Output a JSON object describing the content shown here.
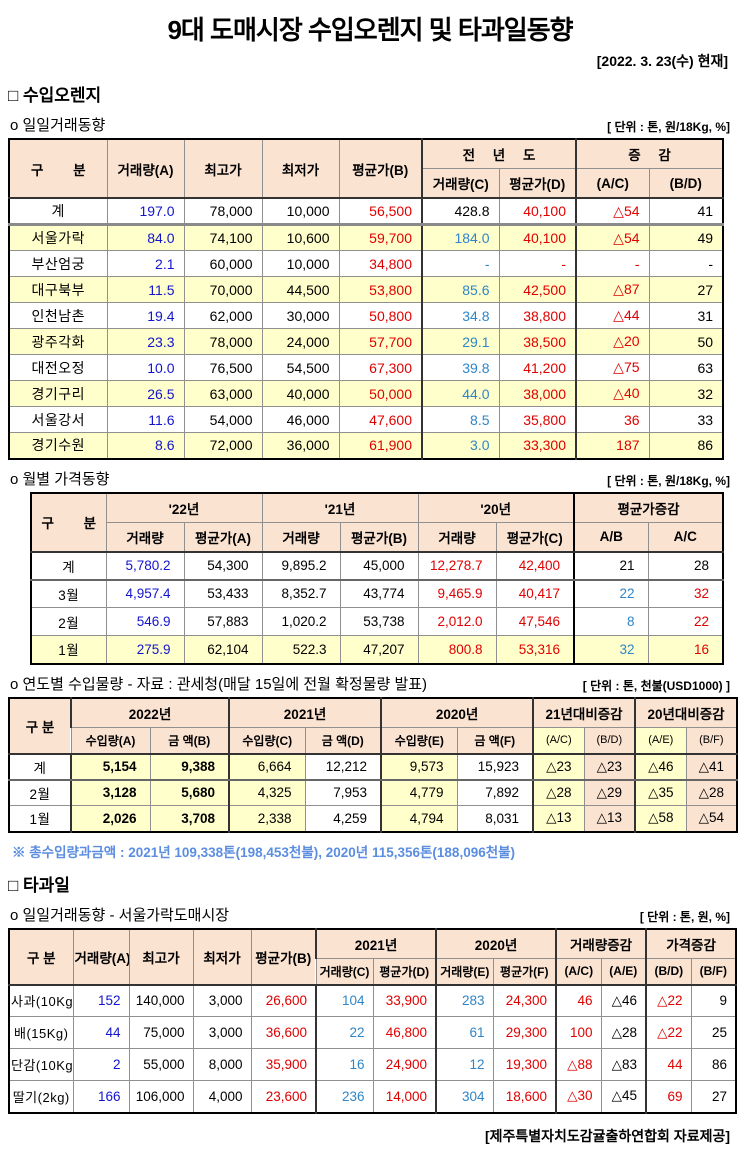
{
  "colors": {
    "header-bg": "#fbe3d2",
    "row-yellow": "#ffffcc",
    "blue": "#1414cf",
    "lightblue": "#2e86c8",
    "red": "#e00000",
    "note-blue": "#5b8de0"
  },
  "page": {
    "title": "9대 도매시장 수입오렌지 및 타과일동향",
    "date": "[2022. 3. 23(수) 현재]",
    "footer": "[제주특별자치도감귤출하연합회 자료제공]"
  },
  "orange": {
    "heading": "□ 수입오렌지",
    "daily": {
      "subheading": "o  일일거래동향",
      "unit": "[ 단위 : 톤, 원/18Kg, %]",
      "headers": {
        "gubun": "구 분",
        "volume_a": "거래량(A)",
        "high": "최고가",
        "low": "최저가",
        "avg_b": "평균가(B)",
        "prev_year": "전 년 도",
        "prev_volume_c": "거래량(C)",
        "prev_avg_d": "평균가(D)",
        "change": "증 감",
        "ac": "(A/C)",
        "bd": "(B/D)"
      },
      "rows": [
        {
          "label": "계",
          "cls": "total",
          "cells": [
            [
              "197.0",
              "blue"
            ],
            [
              "78,000",
              ""
            ],
            [
              "10,000",
              ""
            ],
            [
              "56,500",
              "red"
            ],
            [
              "428.8",
              ""
            ],
            [
              "40,100",
              "red"
            ],
            [
              "△54",
              "red"
            ],
            [
              "41",
              ""
            ]
          ]
        },
        {
          "label": "서울가락",
          "cls": "hl",
          "cells": [
            [
              "84.0",
              "blue"
            ],
            [
              "74,100",
              ""
            ],
            [
              "10,600",
              ""
            ],
            [
              "59,700",
              "red"
            ],
            [
              "184.0",
              "lb"
            ],
            [
              "40,100",
              "red"
            ],
            [
              "△54",
              "red"
            ],
            [
              "49",
              ""
            ]
          ]
        },
        {
          "label": "부산엄궁",
          "cells": [
            [
              "2.1",
              "blue"
            ],
            [
              "60,000",
              ""
            ],
            [
              "10,000",
              ""
            ],
            [
              "34,800",
              "red"
            ],
            [
              "-",
              "lb"
            ],
            [
              "-",
              "red"
            ],
            [
              "-",
              "red"
            ],
            [
              "-",
              ""
            ]
          ]
        },
        {
          "label": "대구북부",
          "cls": "hl",
          "cells": [
            [
              "11.5",
              "blue"
            ],
            [
              "70,000",
              ""
            ],
            [
              "44,500",
              ""
            ],
            [
              "53,800",
              "red"
            ],
            [
              "85.6",
              "lb"
            ],
            [
              "42,500",
              "red"
            ],
            [
              "△87",
              "red"
            ],
            [
              "27",
              ""
            ]
          ]
        },
        {
          "label": "인천남촌",
          "cells": [
            [
              "19.4",
              "blue"
            ],
            [
              "62,000",
              ""
            ],
            [
              "30,000",
              ""
            ],
            [
              "50,800",
              "red"
            ],
            [
              "34.8",
              "lb"
            ],
            [
              "38,800",
              "red"
            ],
            [
              "△44",
              "red"
            ],
            [
              "31",
              ""
            ]
          ]
        },
        {
          "label": "광주각화",
          "cls": "hl",
          "cells": [
            [
              "23.3",
              "blue"
            ],
            [
              "78,000",
              ""
            ],
            [
              "24,000",
              ""
            ],
            [
              "57,700",
              "red"
            ],
            [
              "29.1",
              "lb"
            ],
            [
              "38,500",
              "red"
            ],
            [
              "△20",
              "red"
            ],
            [
              "50",
              ""
            ]
          ]
        },
        {
          "label": "대전오정",
          "cells": [
            [
              "10.0",
              "blue"
            ],
            [
              "76,500",
              ""
            ],
            [
              "54,500",
              ""
            ],
            [
              "67,300",
              "red"
            ],
            [
              "39.8",
              "lb"
            ],
            [
              "41,200",
              "red"
            ],
            [
              "△75",
              "red"
            ],
            [
              "63",
              ""
            ]
          ]
        },
        {
          "label": "경기구리",
          "cls": "hl",
          "cells": [
            [
              "26.5",
              "blue"
            ],
            [
              "63,000",
              ""
            ],
            [
              "40,000",
              ""
            ],
            [
              "50,000",
              "red"
            ],
            [
              "44.0",
              "lb"
            ],
            [
              "38,000",
              "red"
            ],
            [
              "△40",
              "red"
            ],
            [
              "32",
              ""
            ]
          ]
        },
        {
          "label": "서울강서",
          "cells": [
            [
              "11.6",
              "blue"
            ],
            [
              "54,000",
              ""
            ],
            [
              "46,000",
              ""
            ],
            [
              "47,600",
              "red"
            ],
            [
              "8.5",
              "lb"
            ],
            [
              "35,800",
              "red"
            ],
            [
              "36",
              "red"
            ],
            [
              "33",
              ""
            ]
          ]
        },
        {
          "label": "경기수원",
          "cls": "hl",
          "cells": [
            [
              "8.6",
              "blue"
            ],
            [
              "72,000",
              ""
            ],
            [
              "36,000",
              ""
            ],
            [
              "61,900",
              "red"
            ],
            [
              "3.0",
              "lb"
            ],
            [
              "33,300",
              "red"
            ],
            [
              "187",
              "red"
            ],
            [
              "86",
              ""
            ]
          ]
        }
      ]
    },
    "monthly": {
      "subheading": "o  월별 가격동향",
      "unit": "[ 단위 : 톤, 원/18Kg, %]",
      "headers": {
        "gubun": "구 분",
        "y22": "'22년",
        "y21": "'21년",
        "y20": "'20년",
        "chg": "평균가증감",
        "vol": "거래량",
        "avg_a": "평균가(A)",
        "avg_b": "평균가(B)",
        "avg_c": "평균가(C)",
        "ab": "A/B",
        "ac": "A/C"
      },
      "rows": [
        {
          "label": "계",
          "cls": "total",
          "cells": [
            [
              "5,780.2",
              "blue"
            ],
            [
              "54,300",
              ""
            ],
            [
              "9,895.2",
              ""
            ],
            [
              "45,000",
              ""
            ],
            [
              "12,278.7",
              "red"
            ],
            [
              "42,400",
              "red"
            ],
            [
              "21",
              ""
            ],
            [
              "28",
              ""
            ]
          ]
        },
        {
          "label": "3월",
          "cells": [
            [
              "4,957.4",
              "blue"
            ],
            [
              "53,433",
              ""
            ],
            [
              "8,352.7",
              ""
            ],
            [
              "43,774",
              ""
            ],
            [
              "9,465.9",
              "red"
            ],
            [
              "40,417",
              "red"
            ],
            [
              "22",
              "lb"
            ],
            [
              "32",
              "red"
            ]
          ]
        },
        {
          "label": "2월",
          "cells": [
            [
              "546.9",
              "blue"
            ],
            [
              "57,883",
              ""
            ],
            [
              "1,020.2",
              ""
            ],
            [
              "53,738",
              ""
            ],
            [
              "2,012.0",
              "red"
            ],
            [
              "47,546",
              "red"
            ],
            [
              "8",
              "lb"
            ],
            [
              "22",
              "red"
            ]
          ]
        },
        {
          "label": "1월",
          "cls": "hl",
          "cells": [
            [
              "275.9",
              "blue"
            ],
            [
              "62,104",
              ""
            ],
            [
              "522.3",
              ""
            ],
            [
              "47,207",
              ""
            ],
            [
              "800.8",
              "red"
            ],
            [
              "53,316",
              "red"
            ],
            [
              "32",
              "lb"
            ],
            [
              "16",
              "red"
            ]
          ]
        }
      ]
    },
    "yearly": {
      "subheading": "o  연도별 수입물량 - 자료 : 관세청(매달 15일에 전월 확정물량 발표)",
      "unit": "[ 단위 : 톤, 천불(USD1000) ]",
      "note": "※ 총수입량과금액 : 2021년 109,338톤(198,453천불),  2020년 115,356톤(188,096천불)",
      "headers": {
        "gubun": "구 분",
        "y2022": "2022년",
        "y2021": "2021년",
        "y2020": "2020년",
        "vs21": "21년대비증감",
        "vs20": "20년대비증감",
        "in_a": "수입량(A)",
        "amt_b": "금 액(B)",
        "in_c": "수입량(C)",
        "amt_d": "금 액(D)",
        "in_e": "수입량(E)",
        "amt_f": "금 액(F)",
        "ac": "(A/C)",
        "bd": "(B/D)",
        "ae": "(A/E)",
        "bf": "(B/F)"
      },
      "rows": [
        {
          "label": "계",
          "cls": "total",
          "cells": [
            [
              "5,154",
              ""
            ],
            [
              "9,388",
              ""
            ],
            [
              "6,664",
              ""
            ],
            [
              "12,212",
              ""
            ],
            [
              "9,573",
              ""
            ],
            [
              "15,923",
              ""
            ],
            [
              "△23",
              ""
            ],
            [
              "△23",
              ""
            ],
            [
              "△46",
              ""
            ],
            [
              "△41",
              ""
            ]
          ]
        },
        {
          "label": "2월",
          "cells": [
            [
              "3,128",
              ""
            ],
            [
              "5,680",
              ""
            ],
            [
              "4,325",
              ""
            ],
            [
              "7,953",
              ""
            ],
            [
              "4,779",
              ""
            ],
            [
              "7,892",
              ""
            ],
            [
              "△28",
              ""
            ],
            [
              "△29",
              ""
            ],
            [
              "△35",
              ""
            ],
            [
              "△28",
              ""
            ]
          ]
        },
        {
          "label": "1월",
          "cells": [
            [
              "2,026",
              ""
            ],
            [
              "3,708",
              ""
            ],
            [
              "2,338",
              ""
            ],
            [
              "4,259",
              ""
            ],
            [
              "4,794",
              ""
            ],
            [
              "8,031",
              ""
            ],
            [
              "△13",
              ""
            ],
            [
              "△13",
              ""
            ],
            [
              "△58",
              ""
            ],
            [
              "△54",
              ""
            ]
          ]
        }
      ]
    }
  },
  "fruit": {
    "heading": "□ 타과일",
    "daily": {
      "subheading": "o  일일거래동향 - 서울가락도매시장",
      "unit": "[ 단위 : 톤, 원, %]",
      "headers": {
        "gubun": "구 분",
        "vol_a": "거래량(A)",
        "high": "최고가",
        "low": "최저가",
        "avg_b": "평균가(B)",
        "y2021": "2021년",
        "y2020": "2020년",
        "vol_chg": "거래량증감",
        "price_chg": "가격증감",
        "vol_c": "거래량(C)",
        "avg_d": "평균가(D)",
        "vol_e": "거래량(E)",
        "avg_f": "평균가(F)",
        "ac": "(A/C)",
        "ae": "(A/E)",
        "bd": "(B/D)",
        "bf": "(B/F)"
      },
      "rows": [
        {
          "label": "사과(10Kg)",
          "cells": [
            [
              "152",
              "blue"
            ],
            [
              "140,000",
              ""
            ],
            [
              "3,000",
              ""
            ],
            [
              "26,600",
              "red"
            ],
            [
              "104",
              "lb"
            ],
            [
              "33,900",
              "red"
            ],
            [
              "283",
              "lb"
            ],
            [
              "24,300",
              "red"
            ],
            [
              "46",
              "red"
            ],
            [
              "△46",
              ""
            ],
            [
              "△22",
              "red"
            ],
            [
              "9",
              ""
            ]
          ]
        },
        {
          "label": "배(15Kg)",
          "cells": [
            [
              "44",
              "blue"
            ],
            [
              "75,000",
              ""
            ],
            [
              "3,000",
              ""
            ],
            [
              "36,600",
              "red"
            ],
            [
              "22",
              "lb"
            ],
            [
              "46,800",
              "red"
            ],
            [
              "61",
              "lb"
            ],
            [
              "29,300",
              "red"
            ],
            [
              "100",
              "red"
            ],
            [
              "△28",
              ""
            ],
            [
              "△22",
              "red"
            ],
            [
              "25",
              ""
            ]
          ]
        },
        {
          "label": "단감(10Kg)",
          "cells": [
            [
              "2",
              "blue"
            ],
            [
              "55,000",
              ""
            ],
            [
              "8,000",
              ""
            ],
            [
              "35,900",
              "red"
            ],
            [
              "16",
              "lb"
            ],
            [
              "24,900",
              "red"
            ],
            [
              "12",
              "lb"
            ],
            [
              "19,300",
              "red"
            ],
            [
              "△88",
              "red"
            ],
            [
              "△83",
              ""
            ],
            [
              "44",
              "red"
            ],
            [
              "86",
              ""
            ]
          ]
        },
        {
          "label": "딸기(2kg)",
          "cells": [
            [
              "166",
              "blue"
            ],
            [
              "106,000",
              ""
            ],
            [
              "4,000",
              ""
            ],
            [
              "23,600",
              "red"
            ],
            [
              "236",
              "lb"
            ],
            [
              "14,000",
              "red"
            ],
            [
              "304",
              "lb"
            ],
            [
              "18,600",
              "red"
            ],
            [
              "△30",
              "red"
            ],
            [
              "△45",
              ""
            ],
            [
              "69",
              "red"
            ],
            [
              "27",
              ""
            ]
          ]
        }
      ]
    }
  }
}
